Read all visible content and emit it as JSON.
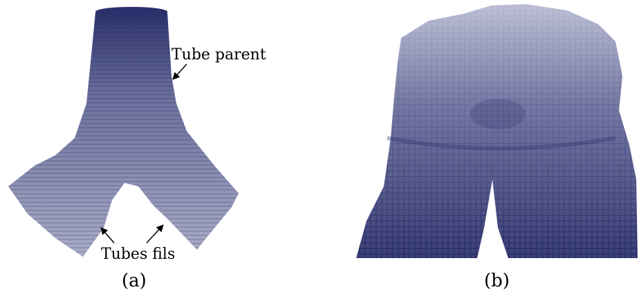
{
  "panel_a": {
    "annotation_top": "Tube parent",
    "annotation_bottom": "Tubes fils",
    "caption": "(a)"
  },
  "panel_b": {
    "caption": "(b)"
  },
  "colors": {
    "voxel_dark": "#2b2f6b",
    "voxel_mid": "#6a6f9c",
    "voxel_light": "#b8bbd2"
  }
}
